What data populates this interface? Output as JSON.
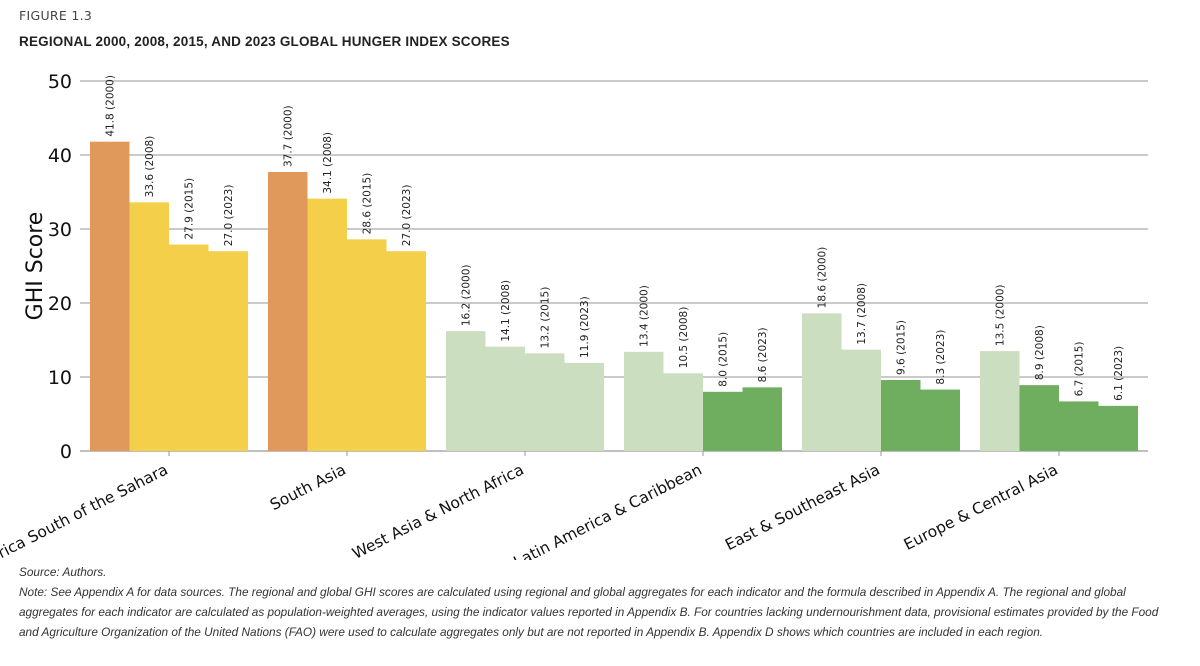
{
  "figure_label": "FIGURE 1.3",
  "title": "REGIONAL 2000, 2008, 2015, AND 2023 GLOBAL HUNGER INDEX SCORES",
  "source": "Source: Authors.",
  "note": "Note: See Appendix A for data sources. The regional and global GHI scores are calculated using regional and global aggregates for each indicator and the formula described in Appendix A. The regional and global aggregates for each indicator are calculated as population-weighted averages, using the indicator values reported in Appendix B. For countries lacking undernourishment data, provisional estimates provided by the Food and Agriculture Organization of the United Nations (FAO) were used to calculate aggregates only but are not reported in Appendix B. Appendix D shows which countries are included in each region.",
  "chart_data": {
    "type": "bar",
    "ylabel": "GHI Score",
    "xlabel": "",
    "ylim": [
      0,
      50
    ],
    "yticks": [
      0,
      10,
      20,
      30,
      40,
      50
    ],
    "grid": true,
    "categories": [
      "Africa South of the Sahara",
      "South Asia",
      "West Asia & North Africa",
      "Latin America & Caribbean",
      "East & Southeast Asia",
      "Europe & Central Asia"
    ],
    "years": [
      "2000",
      "2008",
      "2015",
      "2023"
    ],
    "values": [
      [
        41.8,
        33.6,
        27.9,
        27.0
      ],
      [
        37.7,
        34.1,
        28.6,
        27.0
      ],
      [
        16.2,
        14.1,
        13.2,
        11.9
      ],
      [
        13.4,
        10.5,
        8.0,
        8.6
      ],
      [
        18.6,
        13.7,
        9.6,
        8.3
      ],
      [
        13.5,
        8.9,
        6.7,
        6.1
      ]
    ],
    "severity_colors": {
      "alarming": "#e0995a",
      "serious": "#f4cf4a",
      "moderate": "#cbdfc0",
      "low": "#6fae5f"
    }
  }
}
